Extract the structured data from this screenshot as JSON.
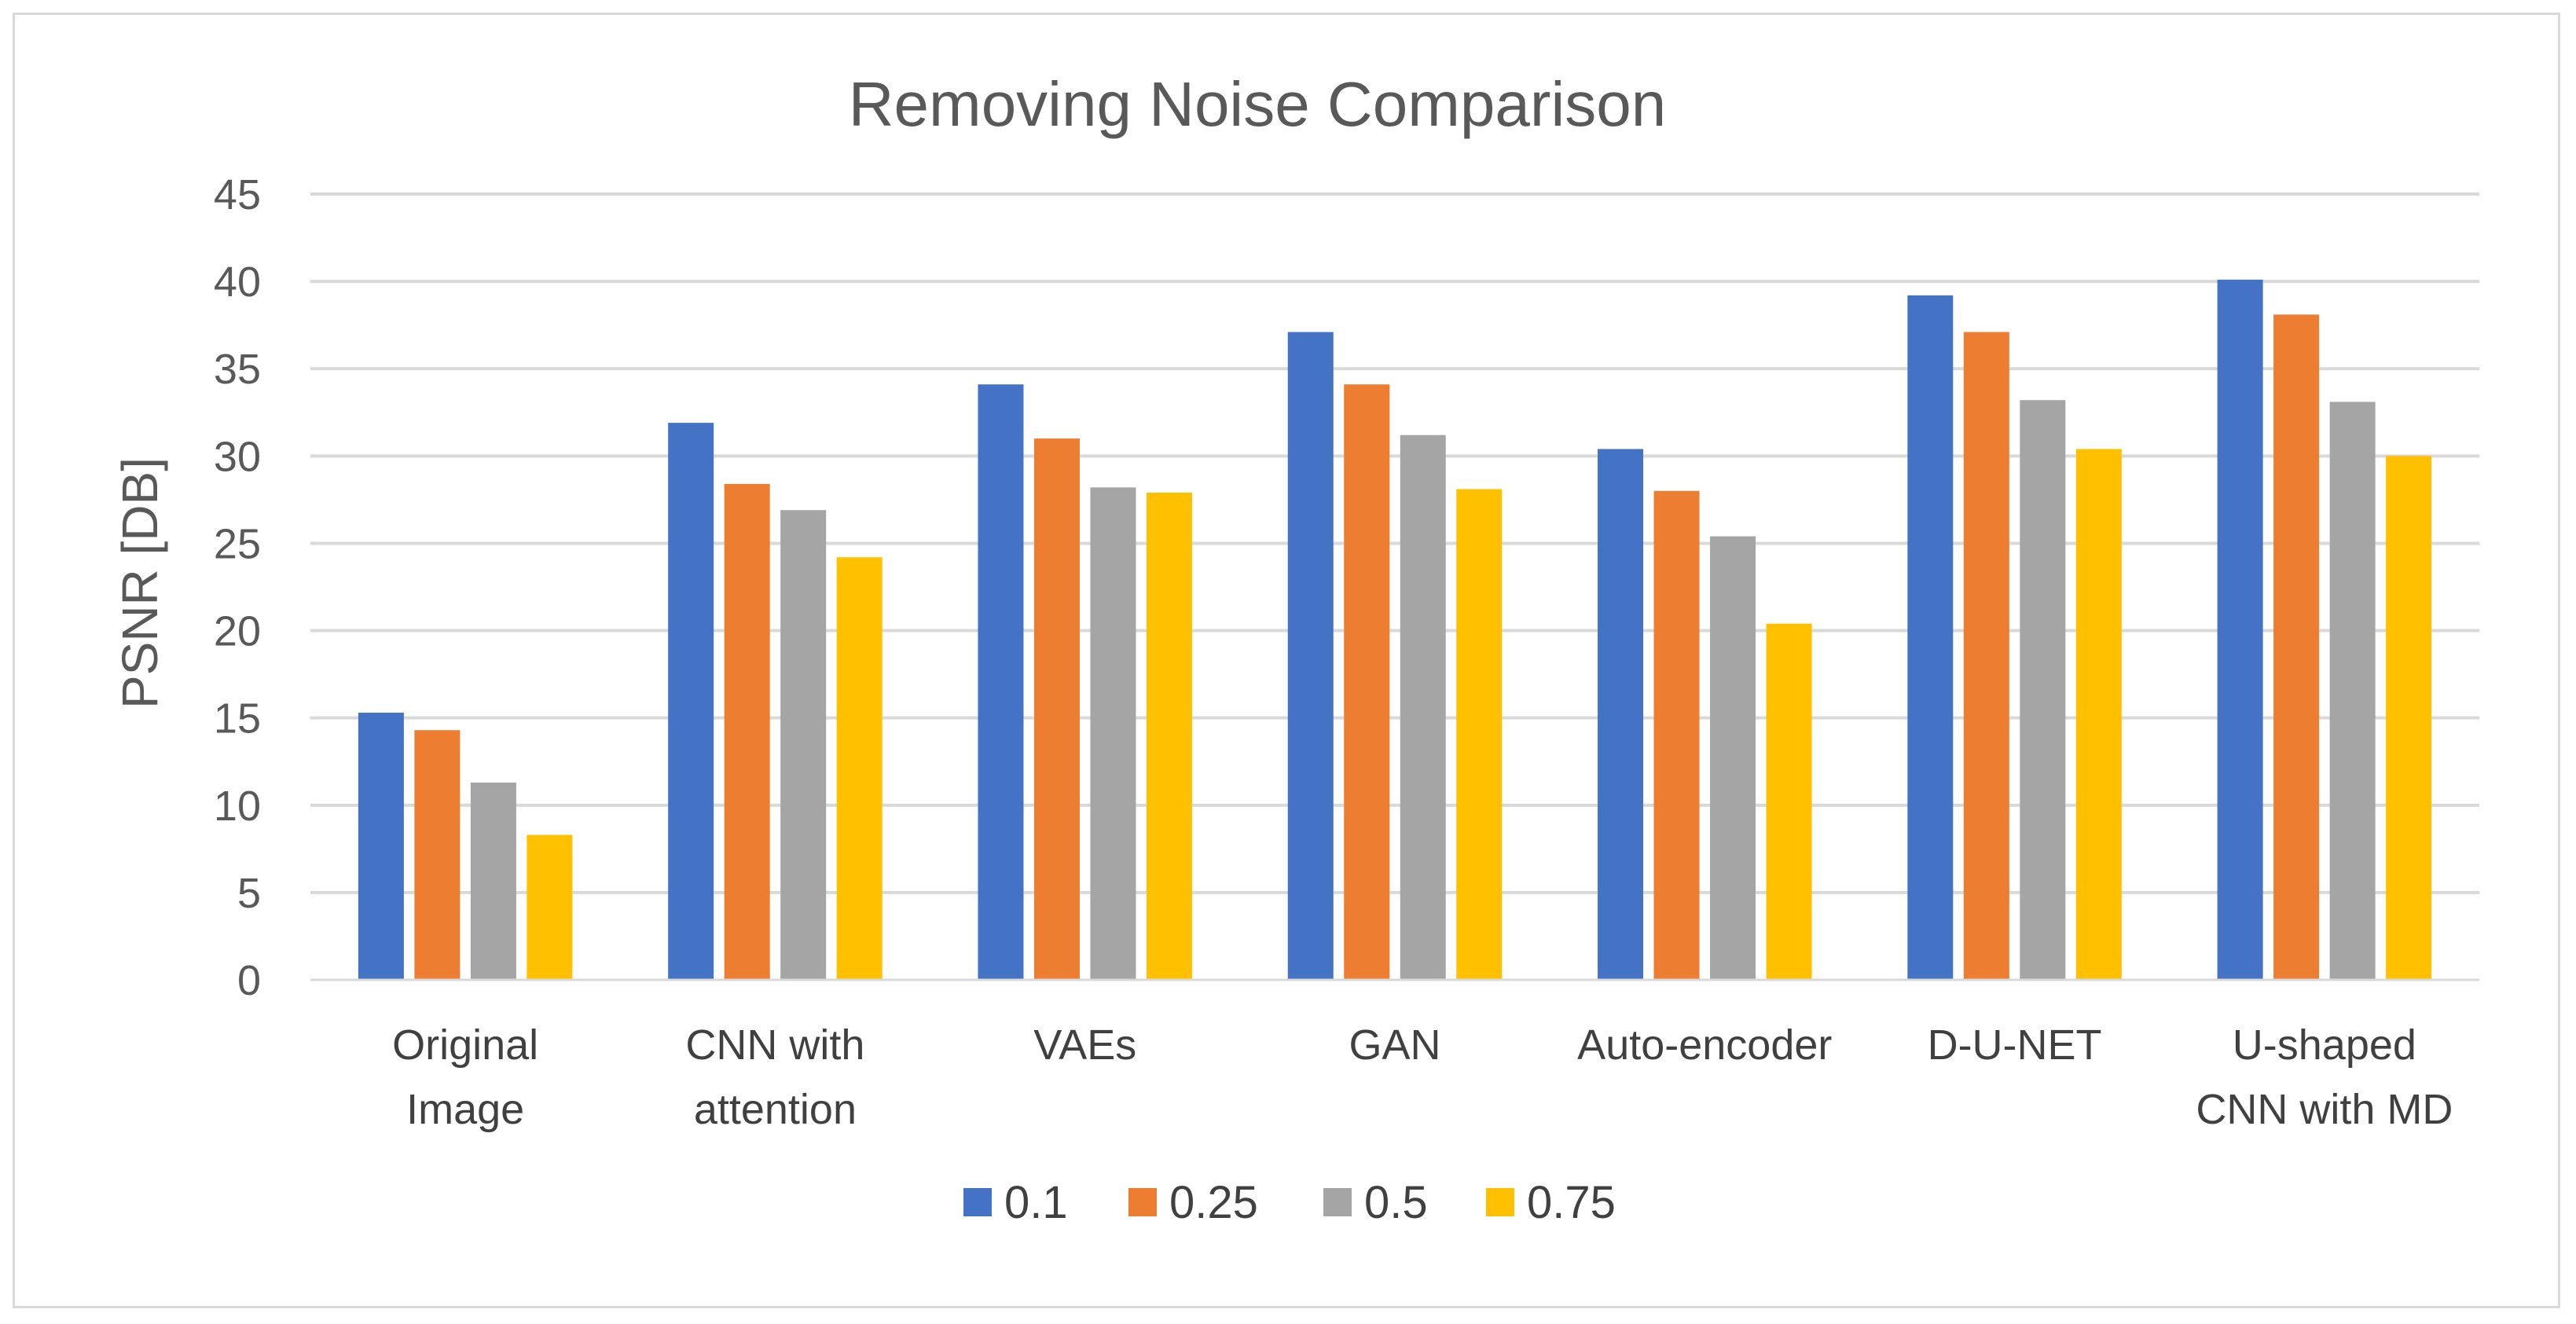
{
  "chart_data": {
    "type": "bar",
    "title": "Removing Noise Comparison",
    "xlabel": "",
    "ylabel": "PSNR [DB]",
    "ylim": [
      0,
      45
    ],
    "yticks": [
      0,
      5,
      10,
      15,
      20,
      25,
      30,
      35,
      40,
      45
    ],
    "grid": true,
    "legend_position": "bottom",
    "categories": [
      [
        "Original",
        "Image"
      ],
      [
        "CNN with",
        "attention"
      ],
      [
        "VAEs"
      ],
      [
        "GAN"
      ],
      [
        "Auto-encoder"
      ],
      [
        "D-U-NET"
      ],
      [
        "U-shaped",
        "CNN with MD"
      ]
    ],
    "series": [
      {
        "name": "0.1",
        "color": "#4472c4",
        "values": [
          15.3,
          31.9,
          34.1,
          37.1,
          30.4,
          39.2,
          40.1
        ]
      },
      {
        "name": "0.25",
        "color": "#ed7d31",
        "values": [
          14.3,
          28.4,
          31.0,
          34.1,
          28.0,
          37.1,
          38.1
        ]
      },
      {
        "name": "0.5",
        "color": "#a5a5a5",
        "values": [
          11.3,
          26.9,
          28.2,
          31.2,
          25.4,
          33.2,
          33.1
        ]
      },
      {
        "name": "0.75",
        "color": "#ffc000",
        "values": [
          8.3,
          24.2,
          27.9,
          28.1,
          20.4,
          30.4,
          30.0
        ]
      }
    ]
  }
}
